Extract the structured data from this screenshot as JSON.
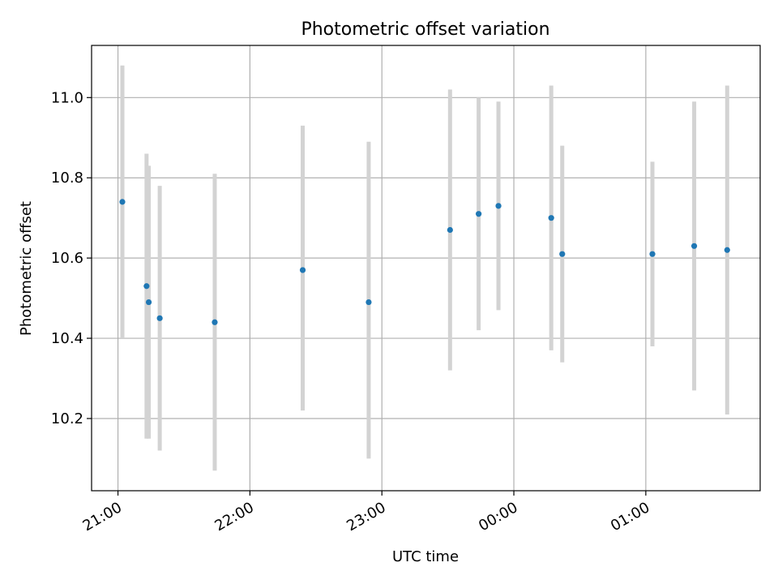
{
  "chart_data": {
    "type": "scatter",
    "title": "Photometric offset variation",
    "xlabel": "UTC time",
    "ylabel": "Photometric offset",
    "x_is_time": true,
    "xlim": [
      "20:48",
      "01:52"
    ],
    "ylim": [
      10.02,
      11.13
    ],
    "x_ticks": [
      "21:00",
      "22:00",
      "23:00",
      "00:00",
      "01:00"
    ],
    "y_ticks": [
      10.2,
      10.4,
      10.6,
      10.8,
      11.0
    ],
    "y_tick_labels": [
      "10.2",
      "10.4",
      "10.6",
      "10.8",
      "11.0"
    ],
    "grid": true,
    "marker_color": "#1f77b4",
    "errorbar_color": "#d3d3d3",
    "series": [
      {
        "points": [
          {
            "x": "21:02",
            "y": 10.74,
            "ylo": 10.4,
            "yhi": 11.08
          },
          {
            "x": "21:13",
            "y": 10.53,
            "ylo": 10.15,
            "yhi": 10.86
          },
          {
            "x": "21:14",
            "y": 10.49,
            "ylo": 10.15,
            "yhi": 10.83
          },
          {
            "x": "21:19",
            "y": 10.45,
            "ylo": 10.12,
            "yhi": 10.78
          },
          {
            "x": "21:44",
            "y": 10.44,
            "ylo": 10.07,
            "yhi": 10.81
          },
          {
            "x": "22:24",
            "y": 10.57,
            "ylo": 10.22,
            "yhi": 10.93
          },
          {
            "x": "22:54",
            "y": 10.49,
            "ylo": 10.1,
            "yhi": 10.89
          },
          {
            "x": "23:31",
            "y": 10.67,
            "ylo": 10.32,
            "yhi": 11.02
          },
          {
            "x": "23:44",
            "y": 10.71,
            "ylo": 10.42,
            "yhi": 11.0
          },
          {
            "x": "23:53",
            "y": 10.73,
            "ylo": 10.47,
            "yhi": 10.99
          },
          {
            "x": "00:17",
            "y": 10.7,
            "ylo": 10.37,
            "yhi": 11.03
          },
          {
            "x": "00:22",
            "y": 10.61,
            "ylo": 10.34,
            "yhi": 10.88
          },
          {
            "x": "01:03",
            "y": 10.61,
            "ylo": 10.38,
            "yhi": 10.84
          },
          {
            "x": "01:22",
            "y": 10.63,
            "ylo": 10.27,
            "yhi": 10.99
          },
          {
            "x": "01:37",
            "y": 10.62,
            "ylo": 10.21,
            "yhi": 11.03
          }
        ]
      }
    ]
  }
}
